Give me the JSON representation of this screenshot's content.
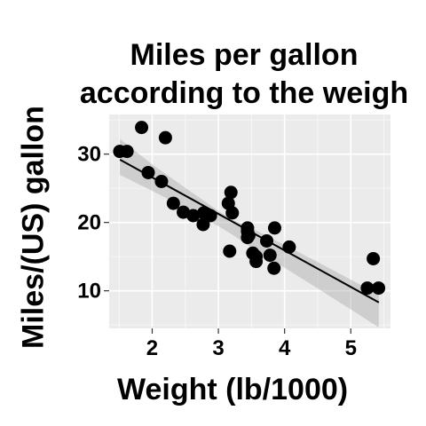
{
  "chart_data": {
    "type": "scatter",
    "title_lines": [
      "Miles per gallon",
      "according to the weigh"
    ],
    "xlabel": "Weight (lb/1000)",
    "ylabel": "Miles/(US) gallon",
    "xlim": [
      1.35,
      5.6
    ],
    "ylim": [
      4.5,
      35.8
    ],
    "xticks": [
      2,
      3,
      4,
      5
    ],
    "yticks": [
      10,
      20,
      30
    ],
    "grid": true,
    "background": "#ebebeb",
    "gridline_color": "#ffffff",
    "point_color": "#000000",
    "fit_line_color": "#000000",
    "ribbon_color": "#999999",
    "points": [
      {
        "x": 1.51,
        "y": 30.4
      },
      {
        "x": 1.62,
        "y": 30.4
      },
      {
        "x": 1.84,
        "y": 33.9
      },
      {
        "x": 1.94,
        "y": 27.3
      },
      {
        "x": 2.14,
        "y": 26.0
      },
      {
        "x": 2.2,
        "y": 32.4
      },
      {
        "x": 2.32,
        "y": 22.8
      },
      {
        "x": 2.47,
        "y": 21.5
      },
      {
        "x": 2.62,
        "y": 21.0
      },
      {
        "x": 2.77,
        "y": 19.7
      },
      {
        "x": 2.78,
        "y": 21.4
      },
      {
        "x": 2.88,
        "y": 21.0
      },
      {
        "x": 3.15,
        "y": 22.8
      },
      {
        "x": 3.17,
        "y": 15.8
      },
      {
        "x": 3.19,
        "y": 24.4
      },
      {
        "x": 3.21,
        "y": 21.4
      },
      {
        "x": 3.44,
        "y": 18.7
      },
      {
        "x": 3.44,
        "y": 19.2
      },
      {
        "x": 3.44,
        "y": 17.8
      },
      {
        "x": 3.46,
        "y": 18.1
      },
      {
        "x": 3.52,
        "y": 15.5
      },
      {
        "x": 3.57,
        "y": 15.0
      },
      {
        "x": 3.57,
        "y": 14.3
      },
      {
        "x": 3.73,
        "y": 17.3
      },
      {
        "x": 3.78,
        "y": 15.2
      },
      {
        "x": 3.84,
        "y": 13.3
      },
      {
        "x": 3.85,
        "y": 19.2
      },
      {
        "x": 4.07,
        "y": 16.4
      },
      {
        "x": 5.25,
        "y": 10.4
      },
      {
        "x": 5.34,
        "y": 14.7
      },
      {
        "x": 5.42,
        "y": 10.4
      }
    ],
    "fit": {
      "intercept": 37.285,
      "slope": -5.344,
      "x_range": [
        1.513,
        5.424
      ]
    },
    "confidence_band": {
      "x": [
        1.513,
        2.0,
        2.5,
        3.0,
        3.217,
        3.5,
        4.0,
        4.5,
        5.0,
        5.424
      ],
      "lower": [
        26.97,
        24.62,
        22.13,
        19.47,
        18.19,
        16.31,
        13.38,
        10.35,
        7.27,
        4.63
      ],
      "upper": [
        32.23,
        28.49,
        25.07,
        21.69,
        20.37,
        19.16,
        16.71,
        14.21,
        11.63,
        9.45
      ]
    }
  }
}
